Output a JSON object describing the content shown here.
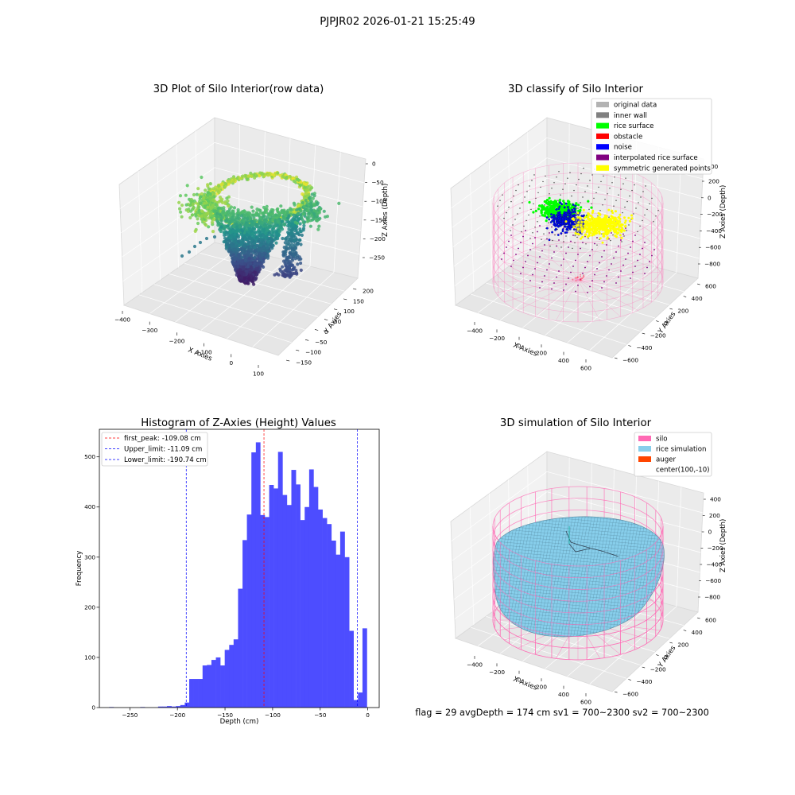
{
  "figure": {
    "suptitle": "PJPJR02 2026-01-21 15:25:49",
    "footer": "flag = 29  avgDepth = 174 cm  sv1 = 700~2300  sv2 = 700~2300"
  },
  "colors": {
    "original_data": "#b3b3b3",
    "inner_wall": "#808080",
    "rice_surface": "#00ff00",
    "obstacle": "#ff0000",
    "noise": "#0000ff",
    "interpolated_rice_surface": "#800080",
    "symmetric_generated_points": "#ffff00",
    "silo": "#ff69b4",
    "rice_simulation": "#87ceeb",
    "auger": "#ff4500",
    "hist_bar": "#4d4dff",
    "first_peak_line": "#ff0000",
    "limit_line": "#0000ff"
  },
  "chart_data": [
    {
      "type": "scatter3d",
      "title": "3D Plot of Silo Interior(row data)",
      "xlabel": "X Axies",
      "ylabel": "Y Axies",
      "zlabel": "Z Axies (Depth)",
      "x_ticks": [
        "−400",
        "−300",
        "−200",
        "−100",
        "0",
        "100"
      ],
      "y_ticks": [
        "−150",
        "−100",
        "−50",
        "0",
        "50",
        "100",
        "150",
        "200"
      ],
      "z_ticks": [
        "0",
        "−50",
        "−100",
        "−150",
        "−200",
        "−250"
      ],
      "colormap": "viridis"
    },
    {
      "type": "scatter3d",
      "title": "3D classify of Silo Interior",
      "xlabel": "X Axies",
      "ylabel": "Y Axies",
      "zlabel": "Z Axies (Depth)",
      "x_ticks": [
        "−400",
        "−200",
        "0",
        "200",
        "400",
        "600"
      ],
      "y_ticks": [
        "−600",
        "−400",
        "−200",
        "0",
        "200",
        "400",
        "600"
      ],
      "z_ticks": [
        "200",
        "0",
        "−200",
        "−400",
        "−600",
        "−800"
      ],
      "z_ticks_partial": [
        "00"
      ],
      "legend": [
        {
          "label": "original data",
          "color": "#b3b3b3"
        },
        {
          "label": "inner wall",
          "color": "#808080"
        },
        {
          "label": "rice surface",
          "color": "#00ff00"
        },
        {
          "label": "obstacle",
          "color": "#ff0000"
        },
        {
          "label": "noise",
          "color": "#0000ff"
        },
        {
          "label": "interpolated rice surface",
          "color": "#800080"
        },
        {
          "label": "symmetric generated points",
          "color": "#ffff00"
        }
      ],
      "legend_position": "top-right"
    },
    {
      "type": "bar",
      "title": "Histogram of Z-Axies (Height) Values",
      "xlabel": "Depth (cm)",
      "ylabel": "Frequency",
      "xlim": [
        -282,
        12
      ],
      "ylim": [
        0,
        555
      ],
      "x_ticks": [
        -250,
        -200,
        -150,
        -100,
        -50,
        0
      ],
      "x_tick_labels": [
        "−250",
        "−200",
        "−150",
        "−100",
        "−50",
        "0"
      ],
      "y_ticks": [
        0,
        100,
        200,
        300,
        400,
        500
      ],
      "y_tick_labels": [
        "0",
        "100",
        "200",
        "300",
        "400",
        "500"
      ],
      "bins": [
        {
          "x0": -271.7,
          "x1": -267.0,
          "v": 1
        },
        {
          "x0": -239.0,
          "x1": -234.3,
          "v": 1
        },
        {
          "x0": -220.3,
          "x1": -215.6,
          "v": 2
        },
        {
          "x0": -215.6,
          "x1": -211.0,
          "v": 2
        },
        {
          "x0": -211.0,
          "x1": -206.3,
          "v": 3
        },
        {
          "x0": -206.3,
          "x1": -201.6,
          "v": 2
        },
        {
          "x0": -201.6,
          "x1": -197.0,
          "v": 3
        },
        {
          "x0": -197.0,
          "x1": -192.3,
          "v": 5
        },
        {
          "x0": -192.3,
          "x1": -187.6,
          "v": 10
        },
        {
          "x0": -187.6,
          "x1": -183.0,
          "v": 57
        },
        {
          "x0": -183.0,
          "x1": -178.3,
          "v": 57
        },
        {
          "x0": -178.3,
          "x1": -173.6,
          "v": 57
        },
        {
          "x0": -173.6,
          "x1": -169.0,
          "v": 84
        },
        {
          "x0": -169.0,
          "x1": -164.3,
          "v": 85
        },
        {
          "x0": -164.3,
          "x1": -159.6,
          "v": 95
        },
        {
          "x0": -159.6,
          "x1": -155.0,
          "v": 100
        },
        {
          "x0": -155.0,
          "x1": -150.3,
          "v": 84
        },
        {
          "x0": -150.3,
          "x1": -145.6,
          "v": 115
        },
        {
          "x0": -145.6,
          "x1": -141.0,
          "v": 125
        },
        {
          "x0": -141.0,
          "x1": -136.3,
          "v": 136
        },
        {
          "x0": -136.3,
          "x1": -131.6,
          "v": 237
        },
        {
          "x0": -131.6,
          "x1": -127.0,
          "v": 334
        },
        {
          "x0": -127.0,
          "x1": -122.3,
          "v": 385
        },
        {
          "x0": -122.3,
          "x1": -117.6,
          "v": 509
        },
        {
          "x0": -117.6,
          "x1": -113.0,
          "v": 529
        },
        {
          "x0": -113.0,
          "x1": -108.3,
          "v": 384
        },
        {
          "x0": -108.3,
          "x1": -103.6,
          "v": 380
        },
        {
          "x0": -103.6,
          "x1": -99.0,
          "v": 444
        },
        {
          "x0": -99.0,
          "x1": -94.3,
          "v": 437
        },
        {
          "x0": -94.3,
          "x1": -89.6,
          "v": 510
        },
        {
          "x0": -89.6,
          "x1": -85.0,
          "v": 424
        },
        {
          "x0": -85.0,
          "x1": -80.3,
          "v": 404
        },
        {
          "x0": -80.3,
          "x1": -75.6,
          "v": 474
        },
        {
          "x0": -75.6,
          "x1": -71.0,
          "v": 445
        },
        {
          "x0": -71.0,
          "x1": -66.3,
          "v": 374
        },
        {
          "x0": -66.3,
          "x1": -61.6,
          "v": 400
        },
        {
          "x0": -61.6,
          "x1": -57.0,
          "v": 475
        },
        {
          "x0": -57.0,
          "x1": -52.3,
          "v": 440
        },
        {
          "x0": -52.3,
          "x1": -47.6,
          "v": 395
        },
        {
          "x0": -47.6,
          "x1": -43.0,
          "v": 378
        },
        {
          "x0": -43.0,
          "x1": -38.3,
          "v": 366
        },
        {
          "x0": -38.3,
          "x1": -33.6,
          "v": 333
        },
        {
          "x0": -33.6,
          "x1": -29.0,
          "v": 305
        },
        {
          "x0": -29.0,
          "x1": -24.3,
          "v": 351
        },
        {
          "x0": -24.3,
          "x1": -19.6,
          "v": 300
        },
        {
          "x0": -19.6,
          "x1": -15.0,
          "v": 153
        },
        {
          "x0": -15.0,
          "x1": -10.3,
          "v": 15
        },
        {
          "x0": -10.3,
          "x1": -5.6,
          "v": 30
        },
        {
          "x0": -5.6,
          "x1": -1.0,
          "v": 158
        }
      ],
      "vlines": [
        {
          "x": -109.08,
          "color": "#ff0000",
          "label": "first_peak: -109.08 cm"
        },
        {
          "x": -11.09,
          "color": "#0000ff",
          "label": "Upper_limit: -11.09 cm"
        },
        {
          "x": -190.74,
          "color": "#0000ff",
          "label": "Lower_limit: -190.74 cm"
        }
      ],
      "legend_position": "top-left",
      "grid": false
    },
    {
      "type": "surface3d",
      "title": "3D simulation of Silo Interior",
      "xlabel": "X Axies",
      "ylabel": "Y Axies",
      "zlabel": "Z Axies (Depth)",
      "x_ticks": [
        "−400",
        "−200",
        "0",
        "200",
        "400",
        "600"
      ],
      "y_ticks": [
        "−600",
        "−400",
        "−200",
        "0",
        "200",
        "400",
        "600"
      ],
      "z_ticks": [
        "400",
        "200",
        "0",
        "−200",
        "−400",
        "−600",
        "−800"
      ],
      "legend": [
        {
          "label": "silo",
          "color": "#ff69b4"
        },
        {
          "label": "rice simulation",
          "color": "#87ceeb"
        },
        {
          "label": "auger",
          "color": "#ff4500"
        },
        {
          "label": "center(100,-10)",
          "color": ""
        }
      ],
      "legend_position": "top-right"
    }
  ]
}
